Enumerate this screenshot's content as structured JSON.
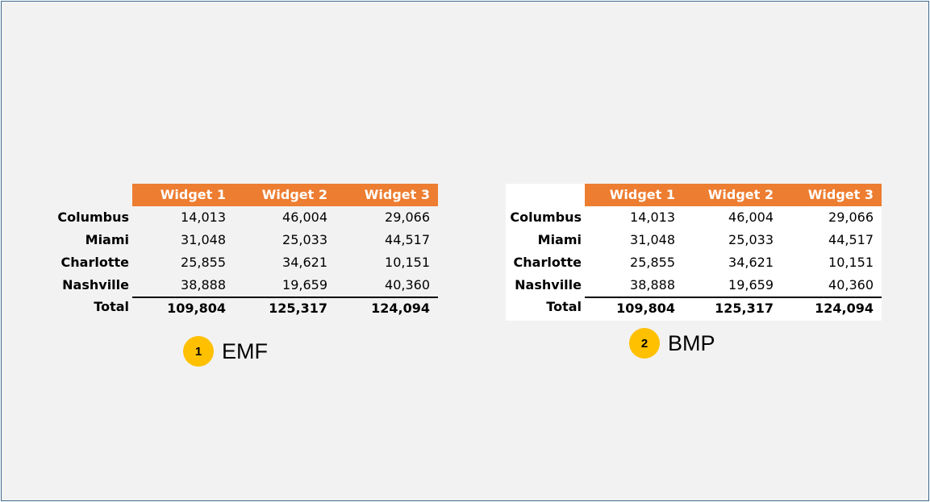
{
  "headers": [
    "Widget 1",
    "Widget 2",
    "Widget 3"
  ],
  "rows": [
    {
      "label": "Columbus",
      "values": [
        "14,013",
        "46,004",
        "29,066"
      ]
    },
    {
      "label": "Miami",
      "values": [
        "31,048",
        "25,033",
        "44,517"
      ]
    },
    {
      "label": "Charlotte",
      "values": [
        "25,855",
        "34,621",
        "10,151"
      ]
    },
    {
      "label": "Nashville",
      "values": [
        "38,888",
        "19,659",
        "40,360"
      ]
    }
  ],
  "total": {
    "label": "Total",
    "values": [
      "109,804",
      "125,317",
      "124,094"
    ]
  },
  "badges": [
    {
      "number": "1",
      "label": "EMF"
    },
    {
      "number": "2",
      "label": "BMP"
    }
  ],
  "colors": {
    "header_bg": "#ed7d31",
    "badge": "#ffc000",
    "frame_border": "#3f6a8f",
    "background": "#f2f2f2"
  }
}
